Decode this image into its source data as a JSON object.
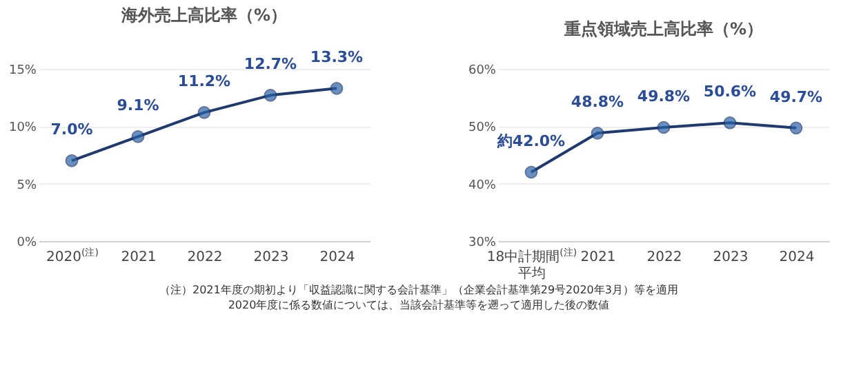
{
  "chart_data": [
    {
      "type": "line",
      "title": "海外売上高比率（%）",
      "categories": [
        "2020$^{(注)}$",
        "2021",
        "2022",
        "2023",
        "2024"
      ],
      "series": [
        {
          "color": "#1f3a6e",
          "values": [
            7.0,
            9.1,
            11.2,
            12.7,
            13.3
          ],
          "value_labels": [
            "7.0%",
            "9.1%",
            "11.2%",
            "12.7%",
            "13.3%"
          ]
        }
      ],
      "ylim": [
        0,
        15
      ],
      "yticks": [
        {
          "value": 0,
          "label": "0%"
        },
        {
          "value": 5,
          "label": "5%"
        },
        {
          "value": 10,
          "label": "10%"
        },
        {
          "value": 15,
          "label": "15%"
        }
      ],
      "grid": "y",
      "marker": "circle",
      "annotations": [
        "（注）2021年度の期初より「収益認識に関する会計基準」（企業会計基準第29号2020年3月）等を適用",
        "2020年度に係る数値については、当該会計基準等を遡って適用した後の数値"
      ]
    },
    {
      "type": "line",
      "title": "重点領域売上高比率（%）",
      "categories": [
        "18中計期間$^{(注)}$\n平均",
        "2021",
        "2022",
        "2023",
        "2024"
      ],
      "series": [
        {
          "color": "#1f3a6e",
          "values": [
            42.0,
            48.8,
            49.8,
            50.6,
            49.7
          ],
          "value_labels": [
            "約42.0%",
            "48.8%",
            "49.8%",
            "50.6%",
            "49.7%"
          ]
        }
      ],
      "ylim": [
        30,
        60
      ],
      "yticks": [
        {
          "value": 30,
          "label": "30%"
        },
        {
          "value": 40,
          "label": "40%"
        },
        {
          "value": 50,
          "label": "50%"
        },
        {
          "value": 60,
          "label": "60%"
        }
      ],
      "grid": "y",
      "marker": "circle"
    }
  ]
}
